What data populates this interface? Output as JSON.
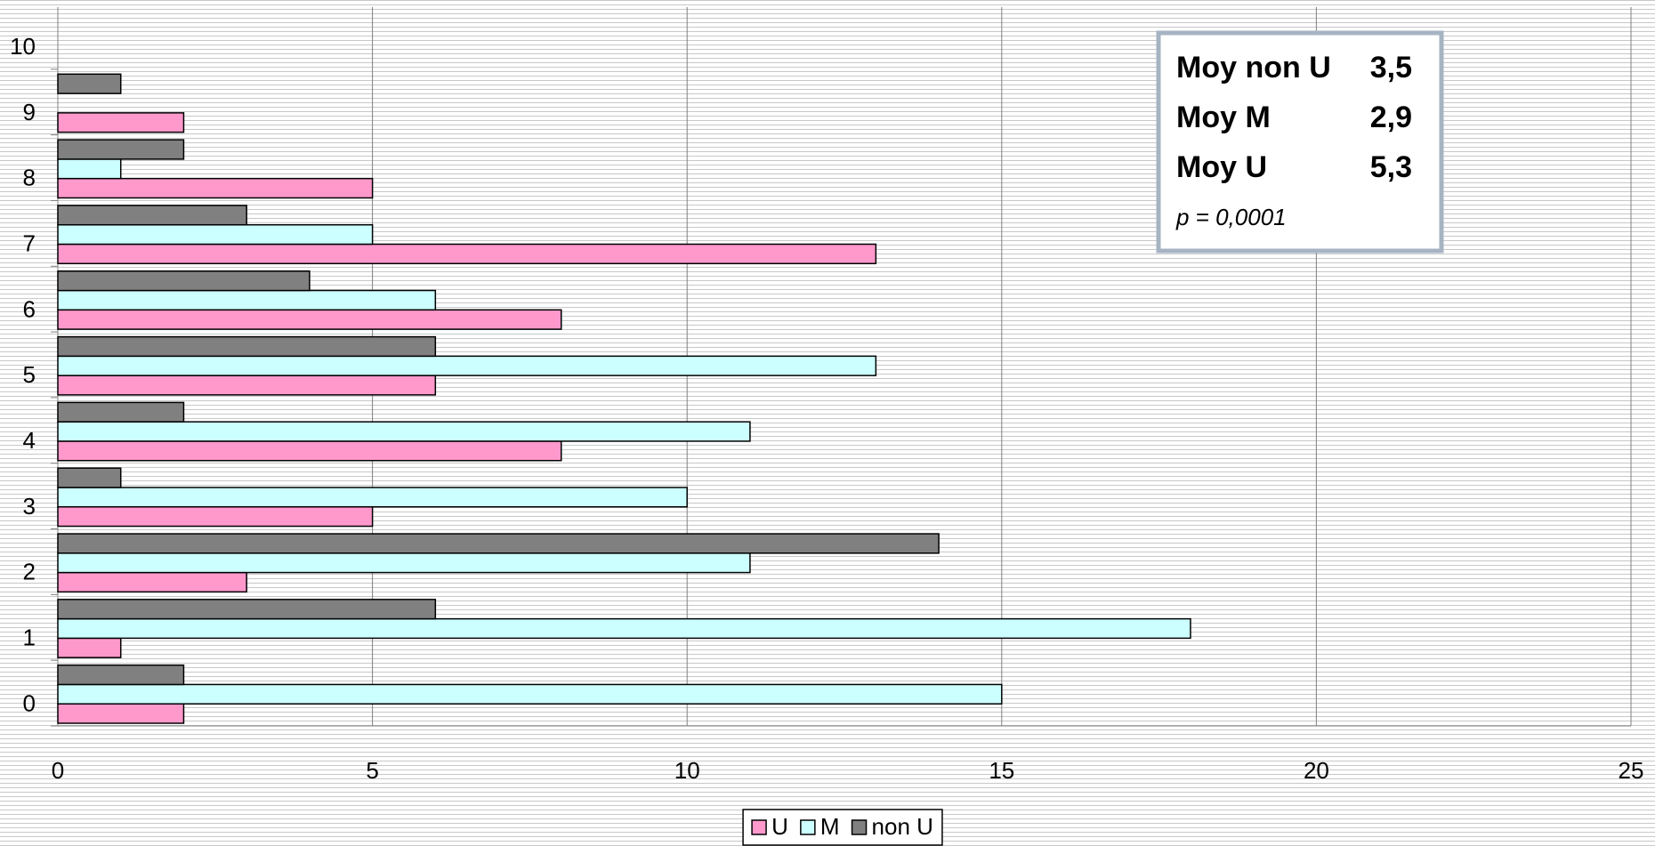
{
  "chart_data": {
    "type": "hbar",
    "categories": [
      "0",
      "1",
      "2",
      "3",
      "4",
      "5",
      "6",
      "7",
      "8",
      "9",
      "10"
    ],
    "series": [
      {
        "name": "U",
        "color": "#ff99cc",
        "values": [
          2,
          1,
          3,
          5,
          8,
          6,
          8,
          13,
          5,
          2,
          0
        ]
      },
      {
        "name": "M",
        "color": "#ccffff",
        "values": [
          15,
          18,
          11,
          10,
          11,
          13,
          6,
          5,
          1,
          0,
          0
        ]
      },
      {
        "name": "non U",
        "color": "#808080",
        "values": [
          2,
          6,
          14,
          1,
          2,
          6,
          4,
          3,
          2,
          1,
          0
        ]
      }
    ],
    "xlim": [
      0,
      25
    ],
    "xticks": [
      0,
      5,
      10,
      15,
      20,
      25
    ],
    "grid": true,
    "legend": "bottom",
    "annotation": {
      "rows": [
        [
          "Moy non U",
          "3,5"
        ],
        [
          "Moy M",
          "2,9"
        ],
        [
          "Moy U",
          "5,3"
        ]
      ],
      "note": "p = 0,0001"
    }
  }
}
